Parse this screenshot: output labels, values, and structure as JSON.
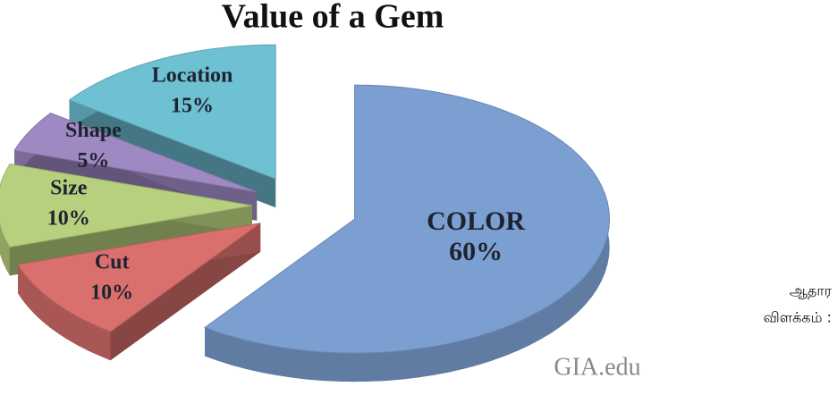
{
  "chart_data": {
    "type": "pie",
    "title": "Value of a Gem",
    "categories": [
      "COLOR",
      "Cut",
      "Size",
      "Shape",
      "Location"
    ],
    "values": [
      60,
      10,
      10,
      5,
      15
    ],
    "value_labels": [
      "60%",
      "10%",
      "10%",
      "5%",
      "15%"
    ],
    "colors": [
      "#7b9fd1",
      "#d9706d",
      "#b7d07e",
      "#9f89c3",
      "#6ec0d3"
    ],
    "three_d": true,
    "exploded": true,
    "watermark": "GIA.edu"
  },
  "side_note": [
    "ஆதார",
    "விளக்கம்  :"
  ]
}
